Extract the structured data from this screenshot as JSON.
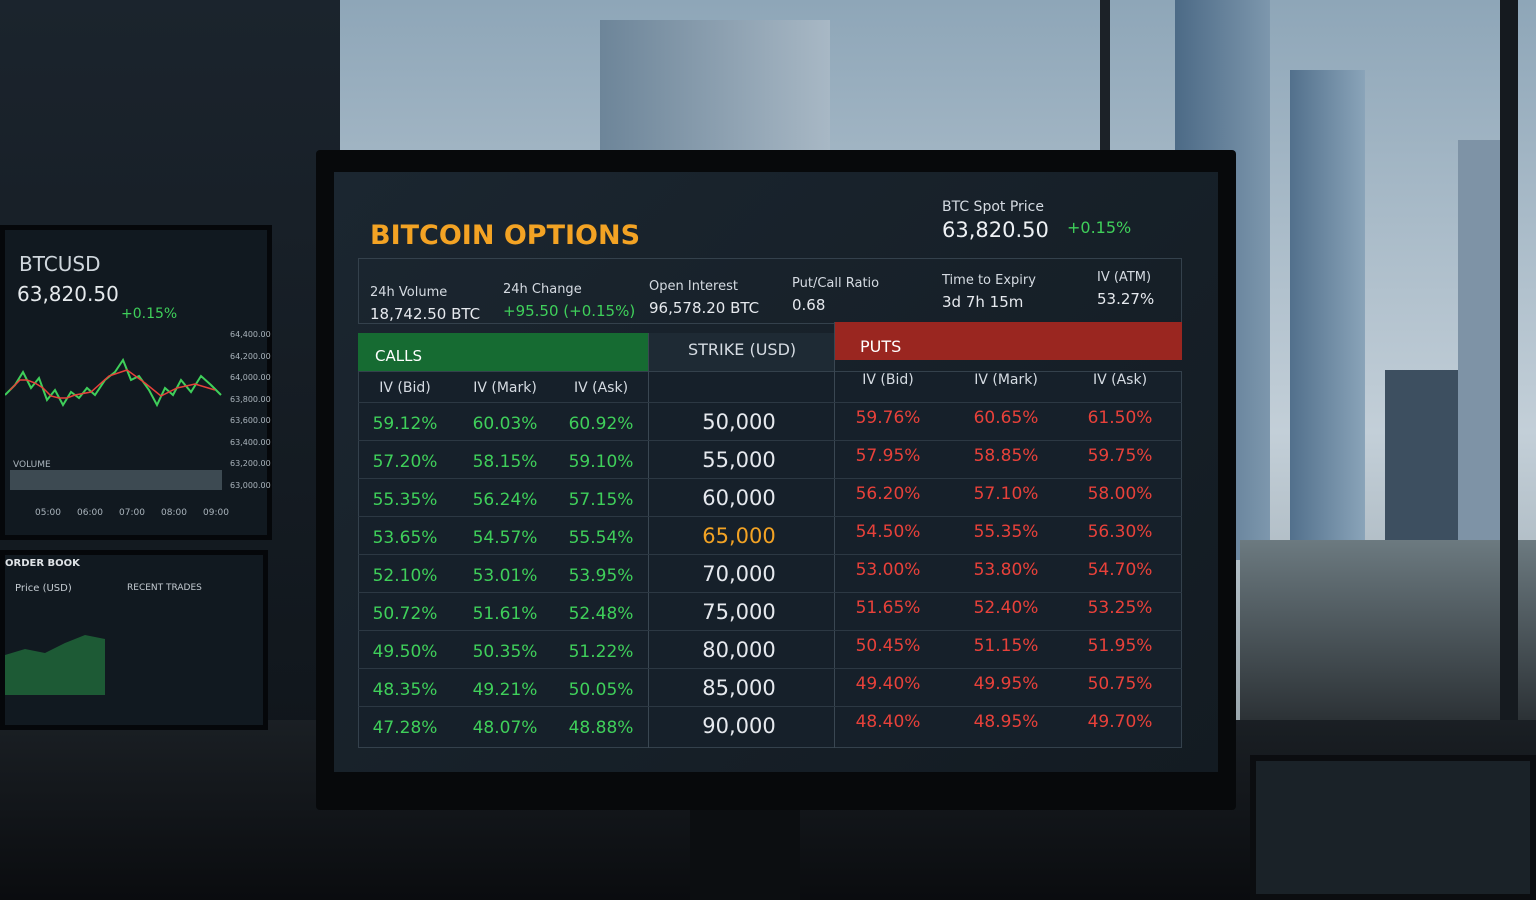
{
  "header": {
    "title": "BITCOIN OPTIONS",
    "spot_label": "BTC Spot Price",
    "spot_value": "63,820.50",
    "spot_change": "+0.15%"
  },
  "stats": [
    {
      "label": "24h Volume",
      "value": "18,742.50 BTC"
    },
    {
      "label": "24h Change",
      "value": "+95.50 (+0.15%)"
    },
    {
      "label": "Open Interest",
      "value": "96,578.20 BTC"
    },
    {
      "label": "Put/Call Ratio",
      "value": "0.68"
    },
    {
      "label": "Time to Expiry",
      "value": "3d 7h 15m"
    },
    {
      "label": "IV (ATM)",
      "value": "53.27%"
    }
  ],
  "table": {
    "calls_label": "CALLS",
    "strike_label": "STRIKE (USD)",
    "puts_label": "PUTS",
    "call_columns": [
      "IV (Bid)",
      "IV (Mark)",
      "IV (Ask)"
    ],
    "put_columns": [
      "IV (Bid)",
      "IV (Mark)",
      "IV (Ask)"
    ],
    "rows": [
      {
        "calls": [
          "59.12%",
          "60.03%",
          "60.92%"
        ],
        "strike": "50,000",
        "puts": [
          "59.76%",
          "60.65%",
          "61.50%"
        ]
      },
      {
        "calls": [
          "57.20%",
          "58.15%",
          "59.10%"
        ],
        "strike": "55,000",
        "puts": [
          "57.95%",
          "58.85%",
          "59.75%"
        ]
      },
      {
        "calls": [
          "55.35%",
          "56.24%",
          "57.15%"
        ],
        "strike": "60,000",
        "puts": [
          "56.20%",
          "57.10%",
          "58.00%"
        ]
      },
      {
        "calls": [
          "53.65%",
          "54.57%",
          "55.54%"
        ],
        "strike": "65,000",
        "puts": [
          "54.50%",
          "55.35%",
          "56.30%"
        ]
      },
      {
        "calls": [
          "52.10%",
          "53.01%",
          "53.95%"
        ],
        "strike": "70,000",
        "puts": [
          "53.00%",
          "53.80%",
          "54.70%"
        ]
      },
      {
        "calls": [
          "50.72%",
          "51.61%",
          "52.48%"
        ],
        "strike": "75,000",
        "puts": [
          "51.65%",
          "52.40%",
          "53.25%"
        ]
      },
      {
        "calls": [
          "49.50%",
          "50.35%",
          "51.22%"
        ],
        "strike": "80,000",
        "puts": [
          "50.45%",
          "51.15%",
          "51.95%"
        ]
      },
      {
        "calls": [
          "48.35%",
          "49.21%",
          "50.05%"
        ],
        "strike": "85,000",
        "puts": [
          "49.40%",
          "49.95%",
          "50.75%"
        ]
      },
      {
        "calls": [
          "47.28%",
          "48.07%",
          "48.88%"
        ],
        "strike": "90,000",
        "puts": [
          "48.40%",
          "48.95%",
          "49.70%"
        ]
      }
    ]
  },
  "side_monitor": {
    "symbol": "BTCUSD",
    "price": "63,820.50",
    "change": "+0.15%",
    "price_axis": [
      "64,400.00",
      "64,200.00",
      "64,000.00",
      "63,800.00",
      "63,600.00",
      "63,400.00",
      "63,200.00",
      "63,000.00"
    ],
    "volume_label": "VOLUME",
    "time_axis": [
      "05:00",
      "06:00",
      "07:00",
      "08:00",
      "09:00"
    ],
    "order_book_title": "ORDER BOOK",
    "order_book_price_header": "Price (USD)",
    "recent_trades_title": "RECENT TRADES"
  }
}
